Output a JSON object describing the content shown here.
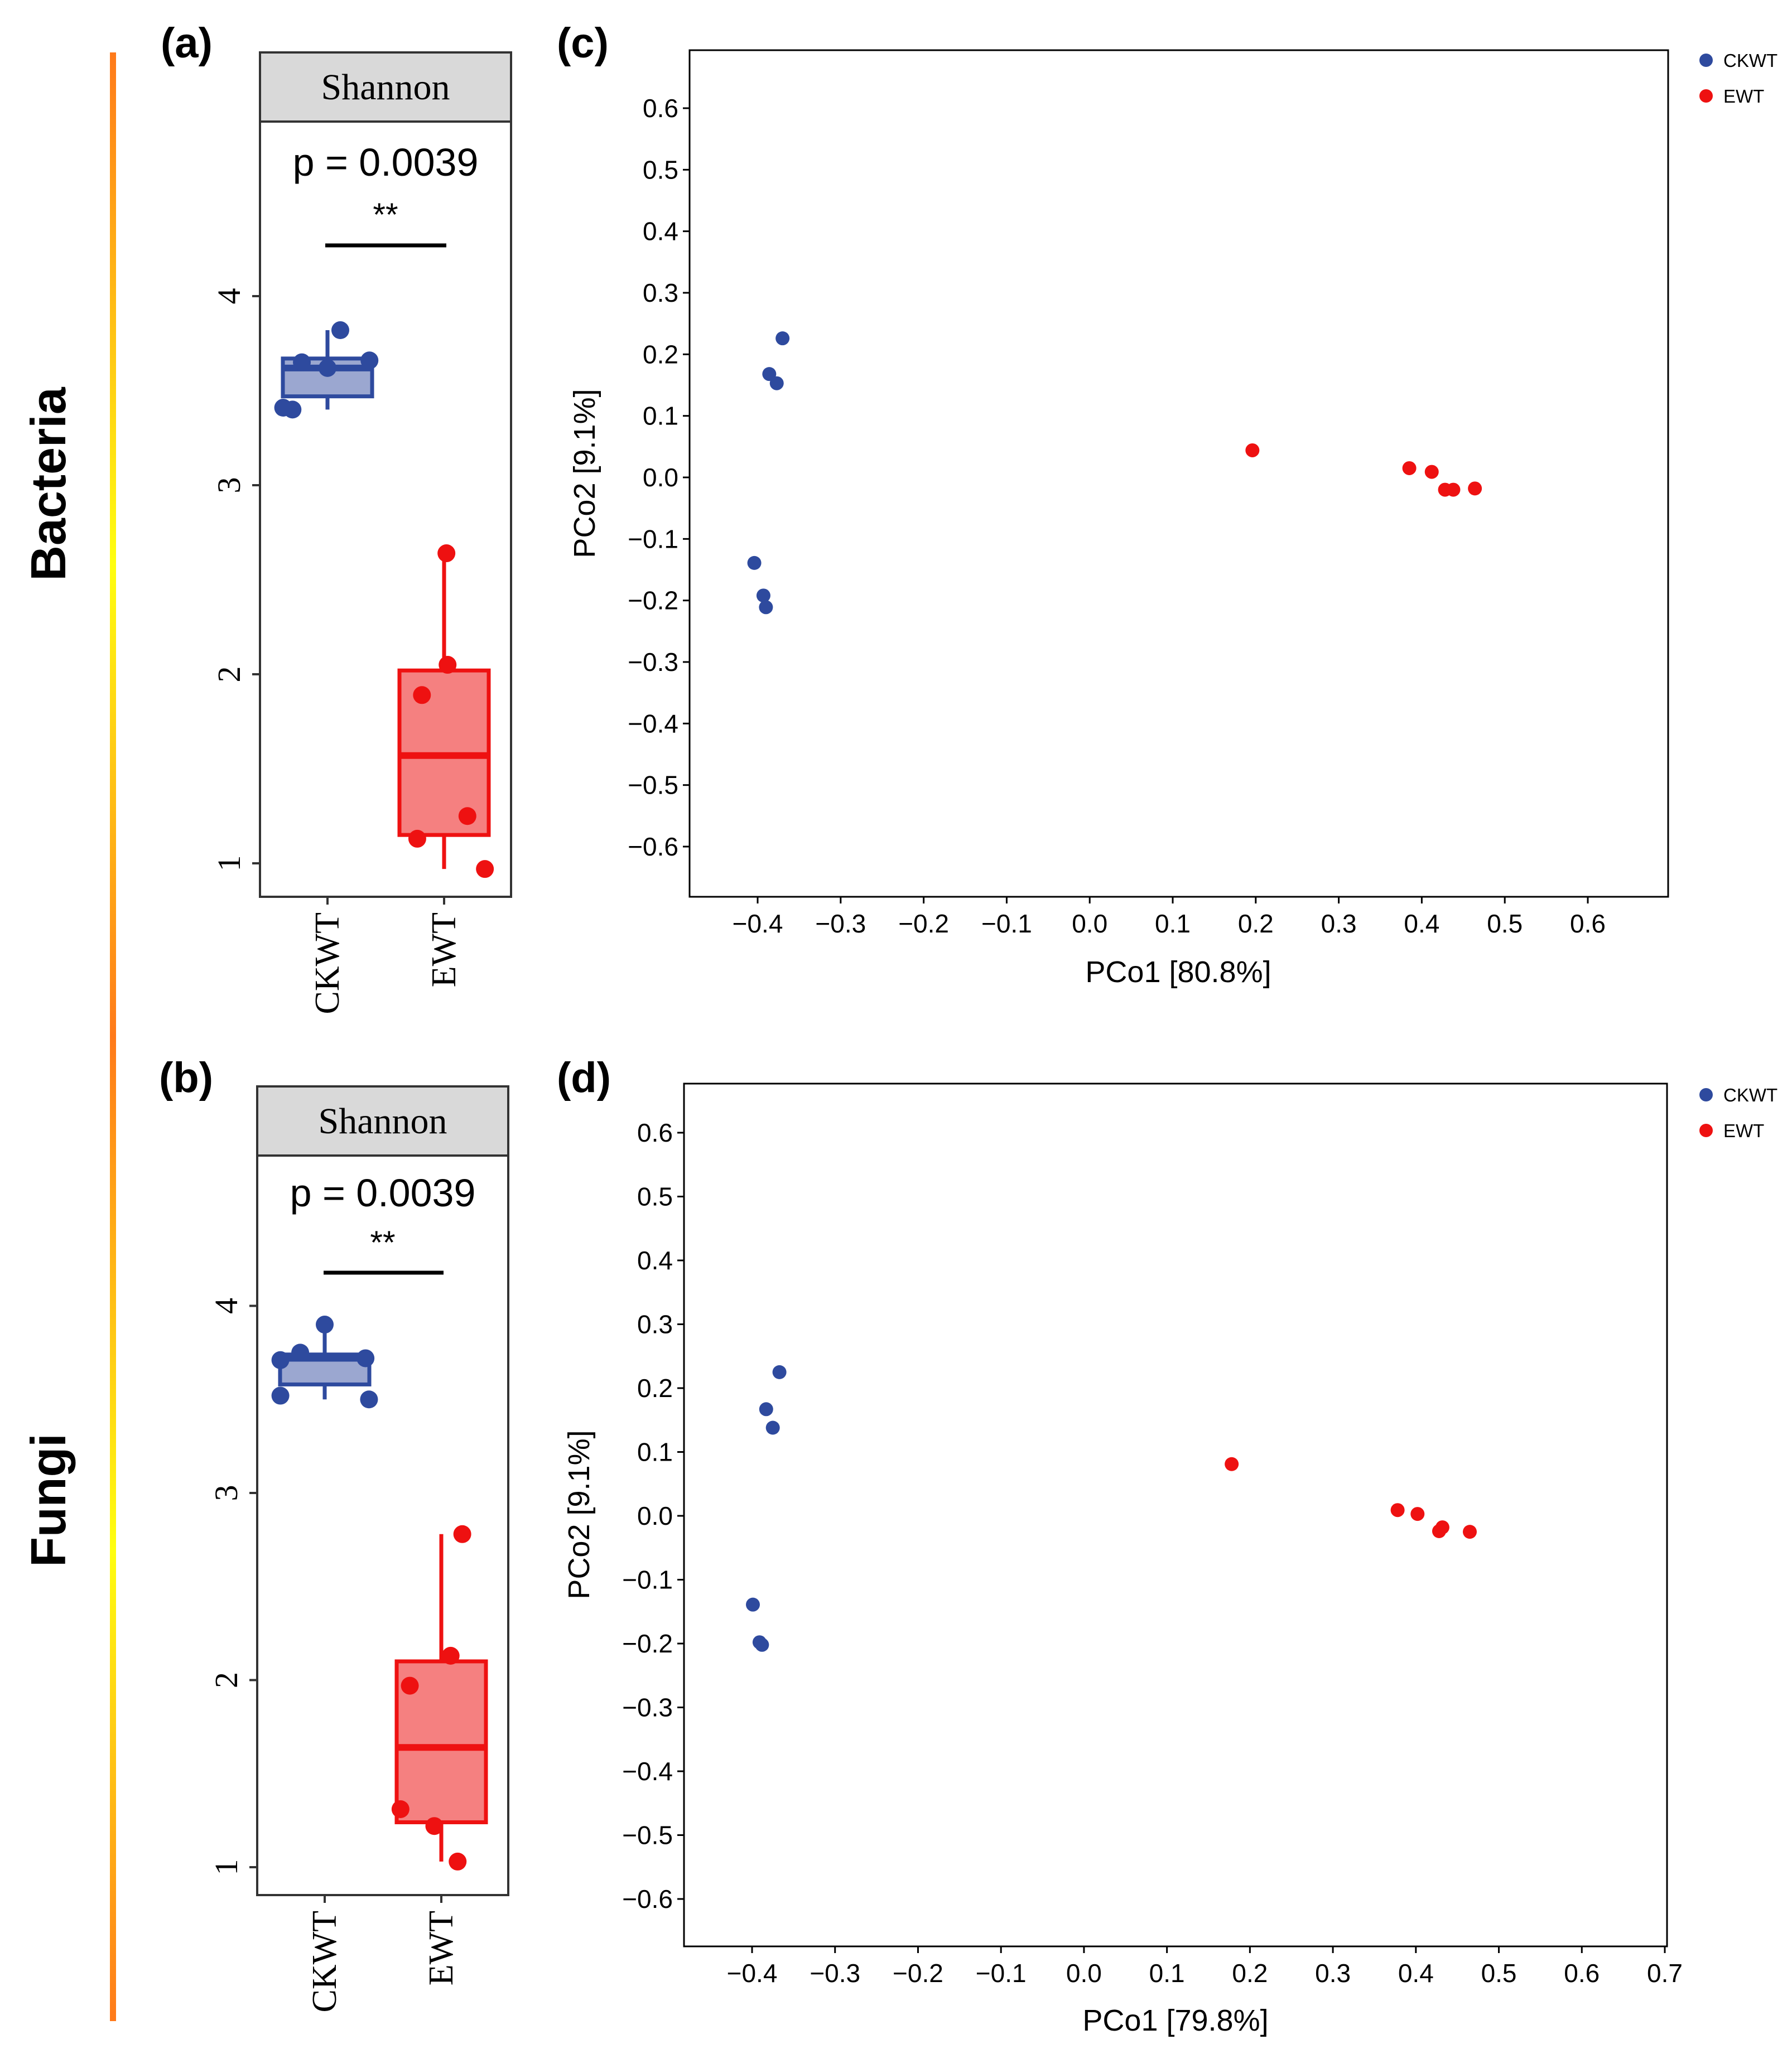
{
  "rows": {
    "bacteria": "Bacteria",
    "fungi": "Fungi"
  },
  "colors": {
    "ckwt": "#2E4A9E",
    "ewt": "#EE1111",
    "ckwt_fill": "#9BA7D0",
    "ewt_fill": "#F58080",
    "strip": "#D9D9D9"
  },
  "chart_data": [
    {
      "id": "a",
      "type": "box",
      "panel_label": "(a)",
      "title": "Shannon",
      "annotation": "p = 0.0039",
      "significance": "**",
      "categories": [
        "CKWT",
        "EWT"
      ],
      "ylim": [
        0.85,
        4.8
      ],
      "yticks": [
        "1",
        "2",
        "3",
        "4"
      ],
      "boxes": [
        {
          "name": "CKWT",
          "min": 3.4,
          "q1": 3.47,
          "median": 3.62,
          "q3": 3.67,
          "max": 3.82
        },
        {
          "name": "EWT",
          "min": 0.97,
          "q1": 1.15,
          "median": 1.57,
          "q3": 2.02,
          "max": 2.64
        }
      ],
      "points": [
        {
          "group": "CKWT",
          "dx": -0.38,
          "y": 3.41
        },
        {
          "group": "CKWT",
          "dx": -0.3,
          "y": 3.4
        },
        {
          "group": "CKWT",
          "dx": -0.22,
          "y": 3.65
        },
        {
          "group": "CKWT",
          "dx": 0.0,
          "y": 3.62
        },
        {
          "group": "CKWT",
          "dx": 0.11,
          "y": 3.82
        },
        {
          "group": "CKWT",
          "dx": 0.36,
          "y": 3.66
        },
        {
          "group": "EWT",
          "dx": 0.02,
          "y": 2.64
        },
        {
          "group": "EWT",
          "dx": 0.03,
          "y": 2.05
        },
        {
          "group": "EWT",
          "dx": -0.19,
          "y": 1.89
        },
        {
          "group": "EWT",
          "dx": 0.2,
          "y": 1.25
        },
        {
          "group": "EWT",
          "dx": -0.23,
          "y": 1.13
        },
        {
          "group": "EWT",
          "dx": 0.35,
          "y": 0.97
        }
      ]
    },
    {
      "id": "b",
      "type": "box",
      "panel_label": "(b)",
      "title": "Shannon",
      "annotation": "p = 0.0039",
      "significance": "**",
      "categories": [
        "CKWT",
        "EWT"
      ],
      "ylim": [
        0.9,
        4.88
      ],
      "yticks": [
        "1",
        "2",
        "3",
        "4"
      ],
      "boxes": [
        {
          "name": "CKWT",
          "min": 3.5,
          "q1": 3.58,
          "median": 3.72,
          "q3": 3.74,
          "max": 3.9
        },
        {
          "name": "EWT",
          "min": 1.03,
          "q1": 1.24,
          "median": 1.64,
          "q3": 2.1,
          "max": 2.78
        }
      ],
      "points": [
        {
          "group": "CKWT",
          "dx": -0.38,
          "y": 3.52
        },
        {
          "group": "CKWT",
          "dx": -0.38,
          "y": 3.71
        },
        {
          "group": "CKWT",
          "dx": -0.21,
          "y": 3.75
        },
        {
          "group": "CKWT",
          "dx": 0.0,
          "y": 3.9
        },
        {
          "group": "CKWT",
          "dx": 0.35,
          "y": 3.72
        },
        {
          "group": "CKWT",
          "dx": 0.38,
          "y": 3.5
        },
        {
          "group": "EWT",
          "dx": 0.18,
          "y": 2.78
        },
        {
          "group": "EWT",
          "dx": 0.08,
          "y": 2.13
        },
        {
          "group": "EWT",
          "dx": -0.27,
          "y": 1.97
        },
        {
          "group": "EWT",
          "dx": -0.35,
          "y": 1.31
        },
        {
          "group": "EWT",
          "dx": -0.06,
          "y": 1.22
        },
        {
          "group": "EWT",
          "dx": 0.14,
          "y": 1.03
        }
      ]
    },
    {
      "id": "c",
      "type": "scatter",
      "panel_label": "(c)",
      "xlabel": "PCo1 [80.8%]",
      "ylabel": "PCo2 [9.1%]",
      "xlim": [
        -0.474,
        0.707
      ],
      "ylim": [
        -0.683,
        0.702
      ],
      "xticks": [
        "−0.4",
        "−0.3",
        "−0.2",
        "−0.1",
        "0.0",
        "0.1",
        "0.2",
        "0.3",
        "0.4",
        "0.5",
        "0.6"
      ],
      "yticks": [
        "0.6",
        "0.5",
        "0.4",
        "0.3",
        "0.2",
        "0.1",
        "0.0",
        "−0.1",
        "−0.2",
        "−0.3",
        "−0.4",
        "−0.5",
        "−0.6"
      ],
      "legend": [
        "CKWT",
        "EWT"
      ],
      "series": [
        {
          "name": "CKWT",
          "points": [
            [
              -0.37,
              0.226
            ],
            [
              -0.386,
              0.168
            ],
            [
              -0.377,
              0.153
            ],
            [
              -0.404,
              -0.139
            ],
            [
              -0.393,
              -0.192
            ],
            [
              -0.39,
              -0.211
            ]
          ]
        },
        {
          "name": "EWT",
          "points": [
            [
              0.196,
              0.044
            ],
            [
              0.385,
              0.015
            ],
            [
              0.412,
              0.009
            ],
            [
              0.428,
              -0.02
            ],
            [
              0.438,
              -0.02
            ],
            [
              0.464,
              -0.018
            ]
          ]
        }
      ]
    },
    {
      "id": "d",
      "type": "scatter",
      "panel_label": "(d)",
      "xlabel": "PCo1 [79.8%]",
      "ylabel": "PCo2 [9.1%]",
      "xlim": [
        -0.484,
        0.703
      ],
      "ylim": [
        -0.668,
        0.673
      ],
      "xticks": [
        "−0.4",
        "−0.3",
        "−0.2",
        "−0.1",
        "0.0",
        "0.1",
        "0.2",
        "0.3",
        "0.4",
        "0.5",
        "0.6",
        "0.7"
      ],
      "yticks": [
        "0.6",
        "0.5",
        "0.4",
        "0.3",
        "0.2",
        "0.1",
        "0.0",
        "−0.1",
        "−0.2",
        "−0.3",
        "−0.4",
        "−0.5",
        "−0.6"
      ],
      "legend": [
        "CKWT",
        "EWT"
      ],
      "series": [
        {
          "name": "CKWT",
          "points": [
            [
              -0.367,
              0.225
            ],
            [
              -0.383,
              0.167
            ],
            [
              -0.375,
              0.138
            ],
            [
              -0.399,
              -0.139
            ],
            [
              -0.391,
              -0.198
            ],
            [
              -0.388,
              -0.202
            ]
          ]
        },
        {
          "name": "EWT",
          "points": [
            [
              0.178,
              0.081
            ],
            [
              0.378,
              0.009
            ],
            [
              0.402,
              0.003
            ],
            [
              0.428,
              -0.024
            ],
            [
              0.432,
              -0.018
            ],
            [
              0.465,
              -0.025
            ]
          ]
        }
      ]
    }
  ]
}
